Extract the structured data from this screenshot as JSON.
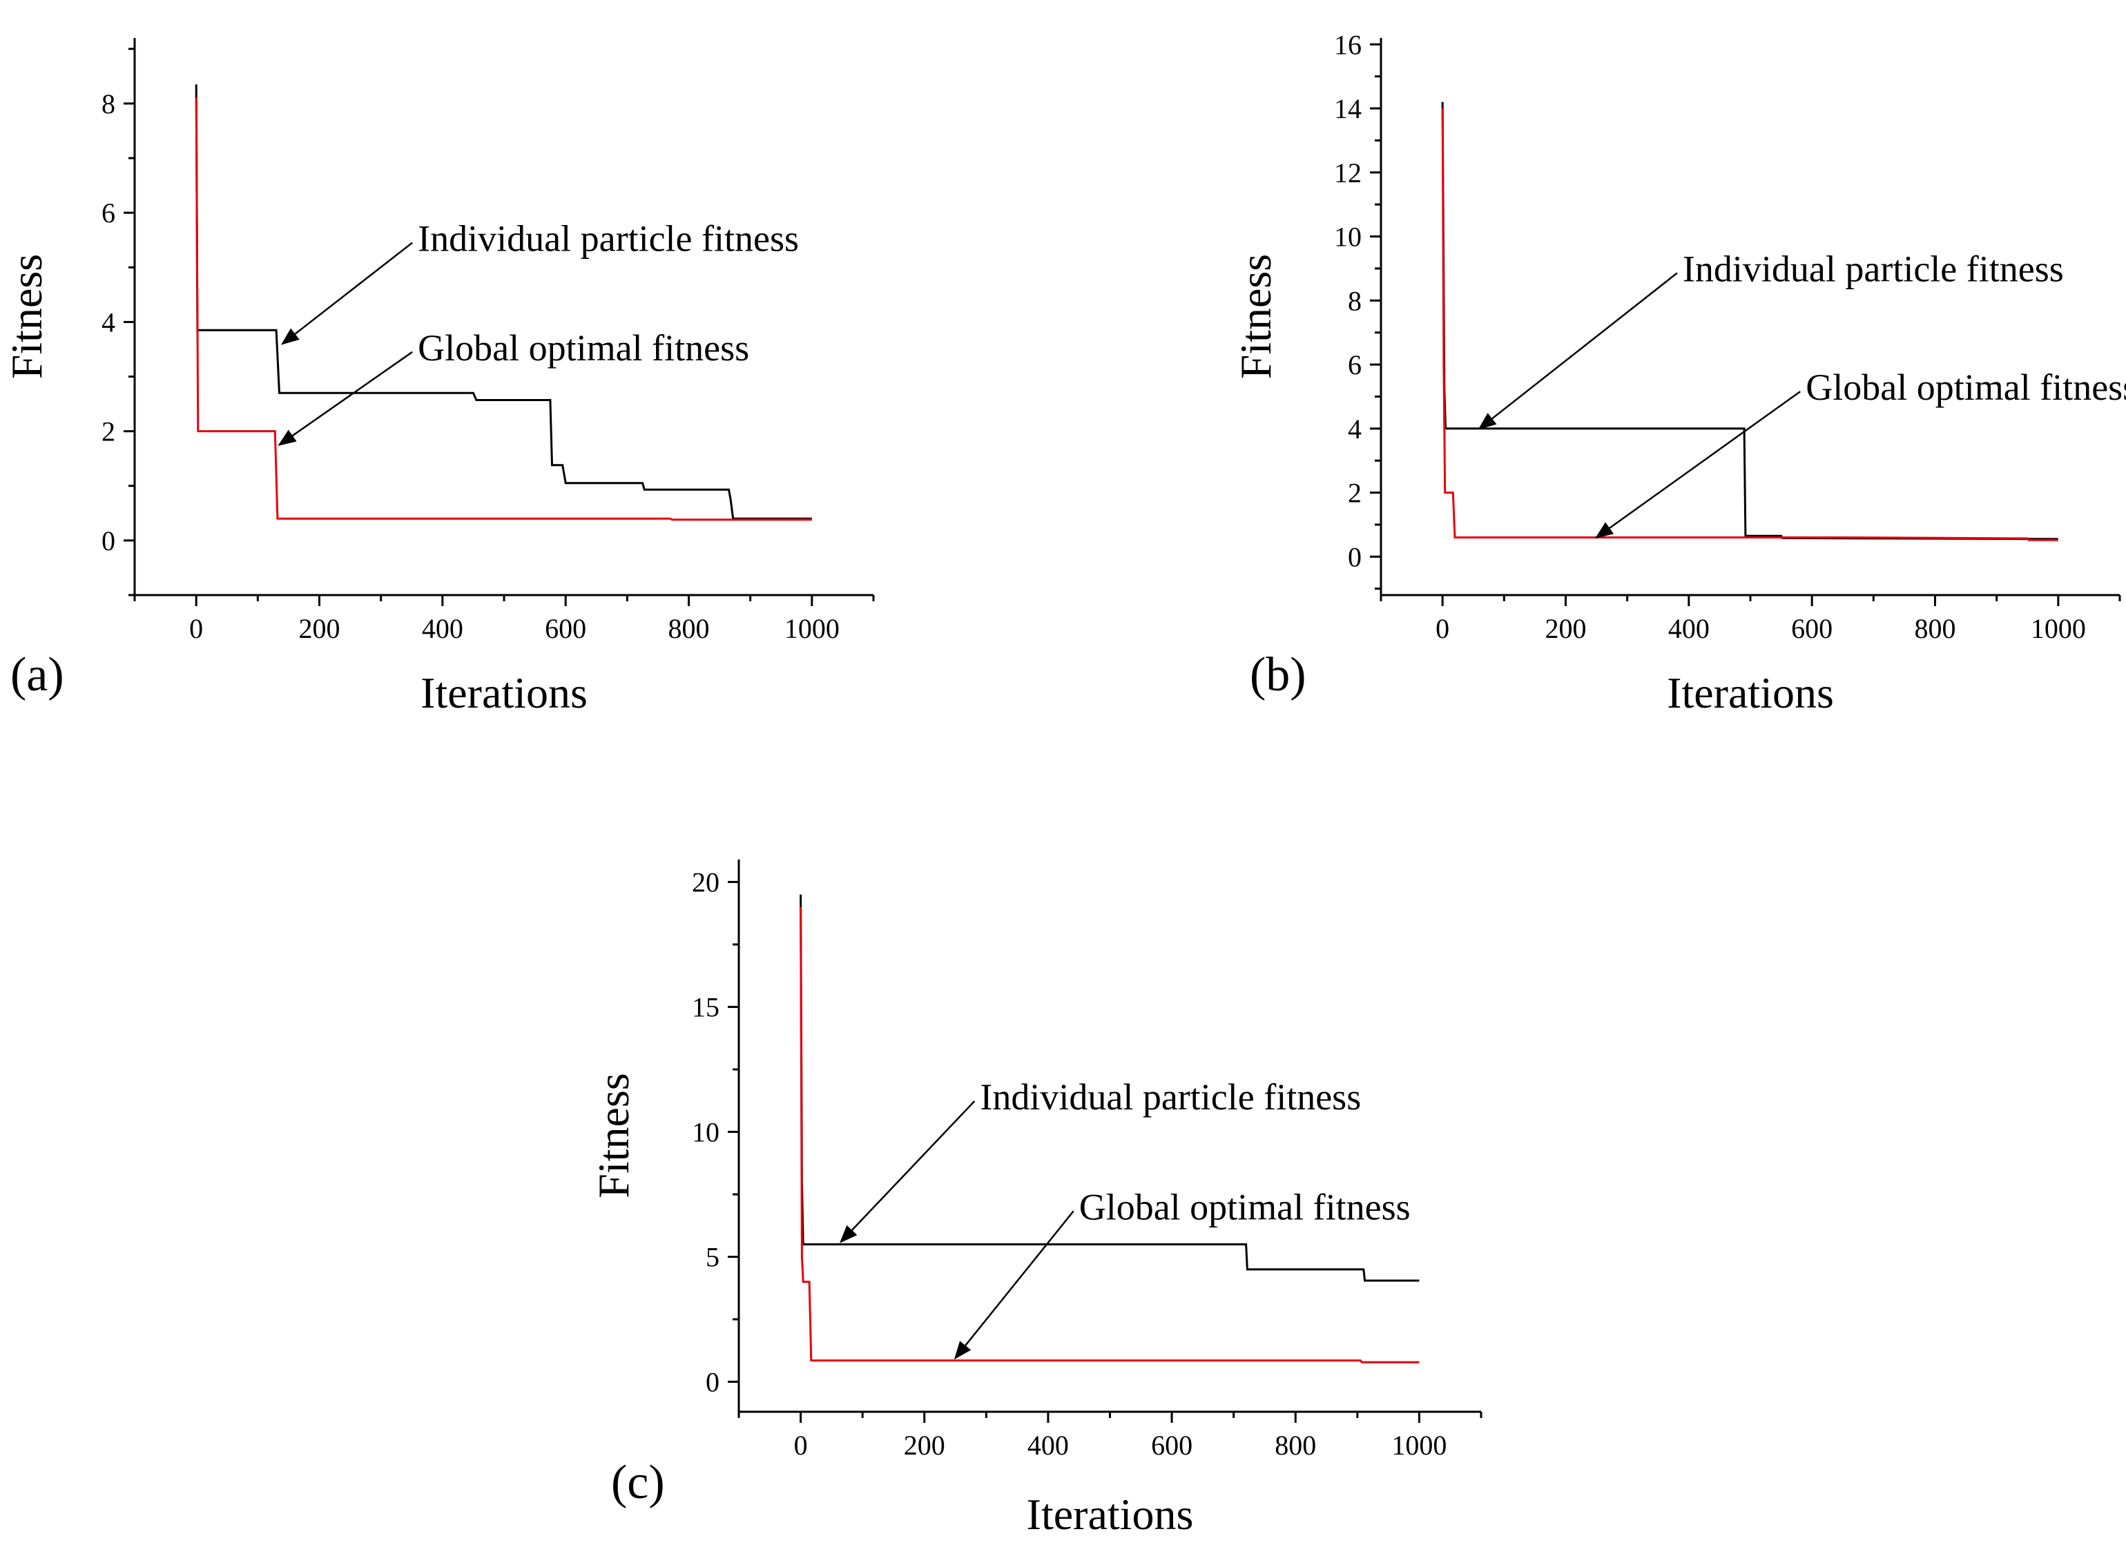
{
  "chart_data": [
    {
      "panel": "(a)",
      "type": "line",
      "xlabel": "Iterations",
      "ylabel": "Fitness",
      "xlim": [
        -100,
        1100
      ],
      "ylim": [
        -1,
        9.2
      ],
      "xticks": [
        0,
        200,
        400,
        600,
        800,
        1000
      ],
      "yticks": [
        0,
        2,
        4,
        6,
        8
      ],
      "series": [
        {
          "name": "Individual particle fitness",
          "color": "#000000",
          "points": [
            [
              0,
              8.35
            ],
            [
              2,
              3.85
            ],
            [
              130,
              3.85
            ],
            [
              135,
              2.7
            ],
            [
              450,
              2.7
            ],
            [
              455,
              2.57
            ],
            [
              575,
              2.57
            ],
            [
              578,
              1.38
            ],
            [
              595,
              1.38
            ],
            [
              600,
              1.05
            ],
            [
              725,
              1.05
            ],
            [
              728,
              0.93
            ],
            [
              865,
              0.93
            ],
            [
              868,
              0.75
            ],
            [
              872,
              0.4
            ],
            [
              1000,
              0.4
            ]
          ]
        },
        {
          "name": "Global optimal fitness",
          "color": "#e8000b",
          "points": [
            [
              0,
              8.1
            ],
            [
              3,
              2.0
            ],
            [
              128,
              2.0
            ],
            [
              132,
              0.4
            ],
            [
              770,
              0.4
            ],
            [
              773,
              0.38
            ],
            [
              1000,
              0.38
            ]
          ]
        }
      ],
      "annotations": [
        {
          "text": "Individual particle fitness",
          "text_xy": [
            360,
            5.3
          ],
          "arrow_to": [
            140,
            3.6
          ]
        },
        {
          "text": "Global optimal fitness",
          "text_xy": [
            360,
            3.3
          ],
          "arrow_to": [
            135,
            1.75
          ]
        }
      ]
    },
    {
      "panel": "(b)",
      "type": "line",
      "xlabel": "Iterations",
      "ylabel": "Fitness",
      "xlim": [
        -100,
        1100
      ],
      "ylim": [
        -1.2,
        16.2
      ],
      "xticks": [
        0,
        200,
        400,
        600,
        800,
        1000
      ],
      "yticks": [
        0,
        2,
        4,
        6,
        8,
        10,
        12,
        14,
        16
      ],
      "series": [
        {
          "name": "Individual particle fitness",
          "color": "#000000",
          "points": [
            [
              0,
              14.2
            ],
            [
              3,
              5.2
            ],
            [
              5,
              4.0
            ],
            [
              490,
              4.0
            ],
            [
              492,
              0.65
            ],
            [
              550,
              0.65
            ],
            [
              552,
              0.58
            ],
            [
              1000,
              0.55
            ]
          ]
        },
        {
          "name": "Global optimal fitness",
          "color": "#e8000b",
          "points": [
            [
              0,
              14.0
            ],
            [
              2,
              6.0
            ],
            [
              4,
              2.0
            ],
            [
              17,
              2.0
            ],
            [
              20,
              0.6
            ],
            [
              650,
              0.6
            ],
            [
              950,
              0.57
            ],
            [
              952,
              0.52
            ],
            [
              1000,
              0.52
            ]
          ]
        }
      ],
      "annotations": [
        {
          "text": "Individual particle fitness",
          "text_xy": [
            390,
            8.6
          ],
          "arrow_to": [
            60,
            4.0
          ]
        },
        {
          "text": "Global optimal fitness",
          "text_xy": [
            590,
            4.9
          ],
          "arrow_to": [
            250,
            0.6
          ]
        }
      ]
    },
    {
      "panel": "(c)",
      "type": "line",
      "xlabel": "Iterations",
      "ylabel": "Fitness",
      "xlim": [
        -100,
        1100
      ],
      "ylim": [
        -1.2,
        20.9
      ],
      "xticks": [
        0,
        200,
        400,
        600,
        800,
        1000
      ],
      "yticks": [
        0,
        5,
        10,
        15,
        20
      ],
      "series": [
        {
          "name": "Individual particle fitness",
          "color": "#000000",
          "points": [
            [
              0,
              19.5
            ],
            [
              2,
              8.0
            ],
            [
              4,
              5.5
            ],
            [
              720,
              5.5
            ],
            [
              722,
              4.5
            ],
            [
              910,
              4.5
            ],
            [
              912,
              4.05
            ],
            [
              1000,
              4.05
            ]
          ]
        },
        {
          "name": "Global optimal fitness",
          "color": "#e8000b",
          "points": [
            [
              0,
              19.0
            ],
            [
              2,
              5.0
            ],
            [
              4,
              4.0
            ],
            [
              14,
              4.0
            ],
            [
              17,
              0.85
            ],
            [
              905,
              0.85
            ],
            [
              907,
              0.78
            ],
            [
              1000,
              0.78
            ]
          ]
        }
      ],
      "annotations": [
        {
          "text": "Individual particle fitness",
          "text_xy": [
            290,
            10.9
          ],
          "arrow_to": [
            65,
            5.6
          ]
        },
        {
          "text": "Global optimal fitness",
          "text_xy": [
            450,
            6.5
          ],
          "arrow_to": [
            250,
            0.95
          ]
        }
      ]
    }
  ]
}
